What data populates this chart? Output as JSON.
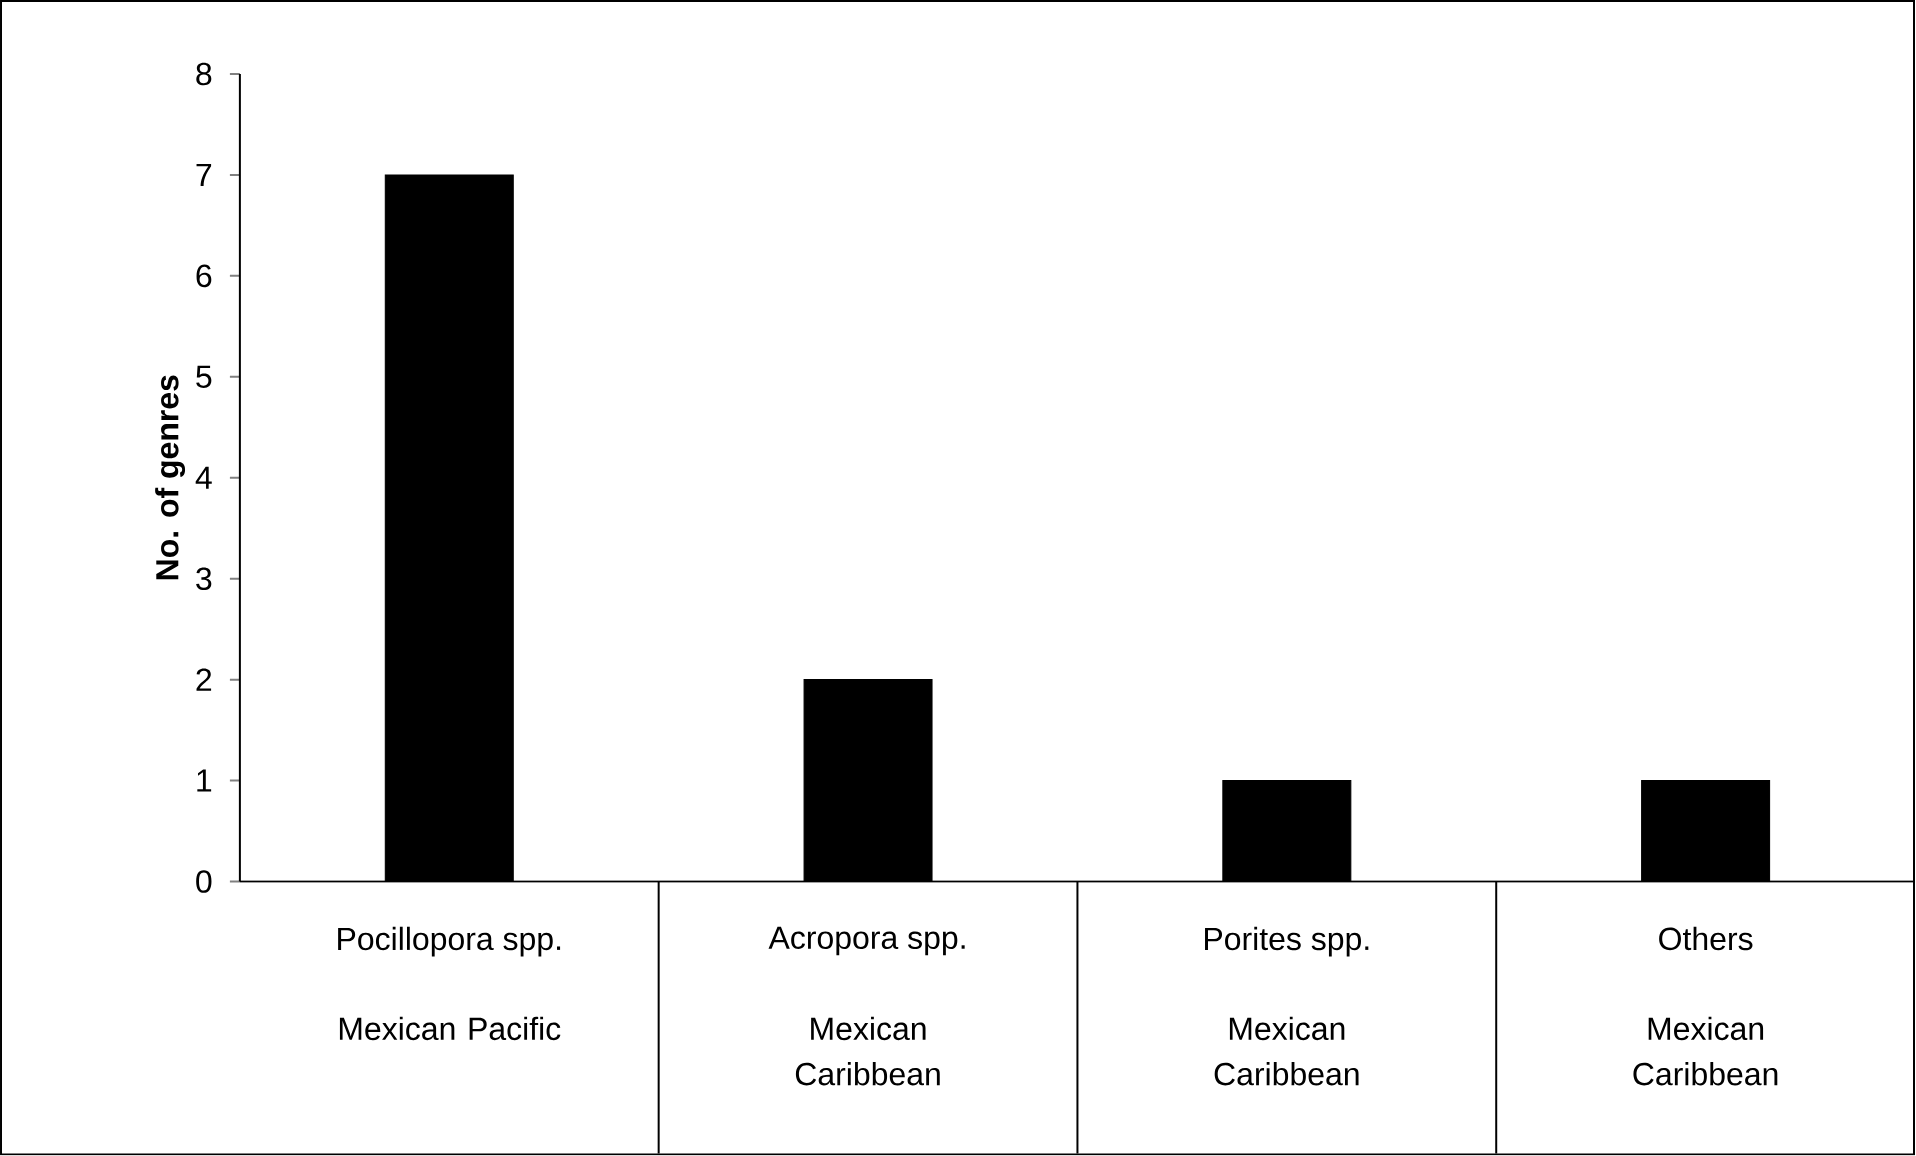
{
  "chart_data": {
    "type": "bar",
    "ylabel": "No. of genres",
    "categories": [
      "Pocillopora spp.",
      "Acropora spp.",
      "Porites spp.",
      "Others"
    ],
    "annotations": [
      "Mexican Pacific",
      "Mexican Caribbean",
      "Mexican Caribbean",
      "Mexican Caribbean"
    ],
    "values": [
      7,
      2,
      1,
      1
    ],
    "color": "#000000",
    "ylim": [
      0,
      8
    ],
    "yticks": [
      0,
      1,
      2,
      3,
      4,
      5,
      6,
      7,
      8
    ],
    "grid": false
  }
}
